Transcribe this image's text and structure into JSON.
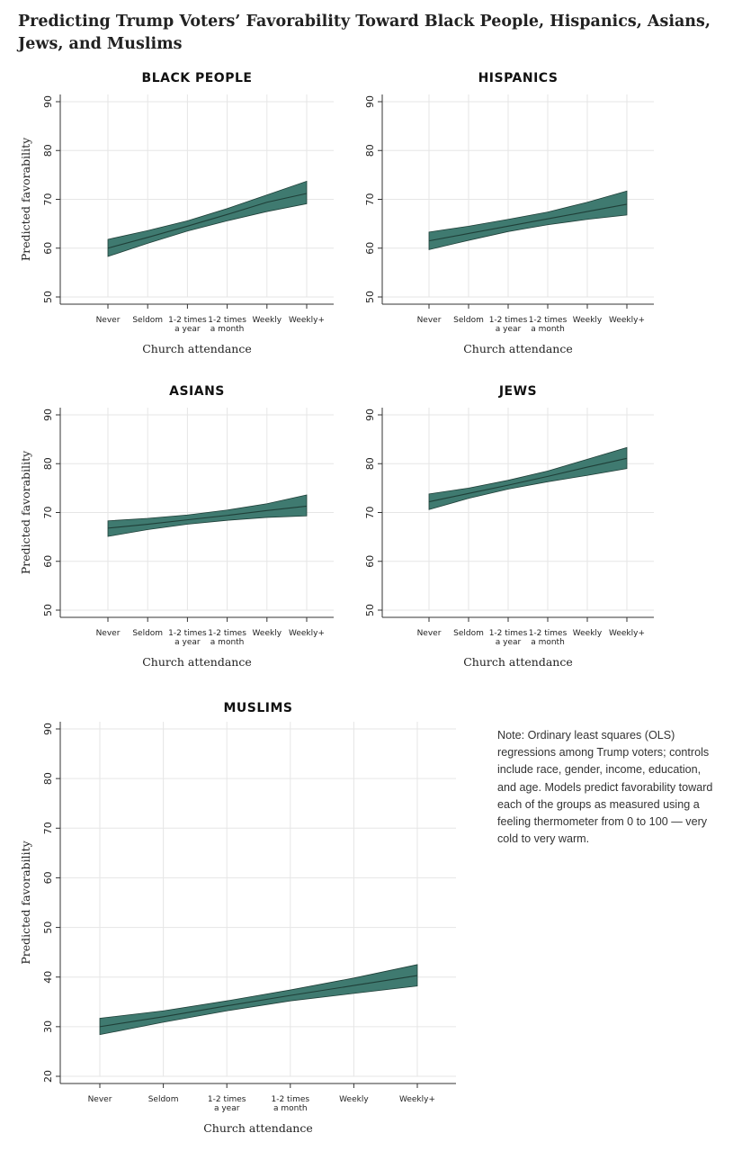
{
  "title": "Predicting Trump Voters’ Favorability Toward Black People, Hispanics, Asians, Jews, and Muslims",
  "note": "Note: Ordinary least squares (OLS) regressions among Trump voters; controls include race, gender, income, education, and age. Models predict favorability toward each of the groups as measured using a feeling thermometer from 0 to 100 — very cold to very warm.",
  "colors": {
    "band": "#3f7a70",
    "line": "#1f3f38",
    "grid": "#e6e6e6",
    "axis": "#333333"
  },
  "chart_data": [
    {
      "type": "area",
      "title": "BLACK PEOPLE",
      "xlabel": "Church attendance",
      "ylabel": "Predicted favorability",
      "categories": [
        [
          "Never"
        ],
        [
          "Seldom"
        ],
        [
          "1-2 times",
          "a year"
        ],
        [
          "1-2 times",
          "a month"
        ],
        [
          "Weekly"
        ],
        [
          "Weekly+"
        ]
      ],
      "ylim": [
        50,
        90
      ],
      "yticks": [
        50,
        60,
        70,
        80,
        90
      ],
      "grid": true,
      "series": [
        {
          "values": [
            60.0,
            62.2,
            64.5,
            66.9,
            69.4,
            71.2
          ],
          "lower": [
            58.3,
            61.0,
            63.5,
            65.6,
            67.5,
            69.1
          ],
          "upper": [
            61.8,
            63.6,
            65.6,
            68.1,
            70.9,
            73.7
          ]
        }
      ]
    },
    {
      "type": "area",
      "title": "HISPANICS",
      "xlabel": "Church attendance",
      "ylabel": "",
      "categories": [
        [
          "Never"
        ],
        [
          "Seldom"
        ],
        [
          "1-2 times",
          "a year"
        ],
        [
          "1-2 times",
          "a month"
        ],
        [
          "Weekly"
        ],
        [
          "Weekly+"
        ]
      ],
      "ylim": [
        50,
        90
      ],
      "yticks": [
        50,
        60,
        70,
        80,
        90
      ],
      "grid": true,
      "series": [
        {
          "values": [
            61.5,
            63.0,
            64.5,
            66.0,
            67.5,
            69.0
          ],
          "lower": [
            59.7,
            61.6,
            63.4,
            64.8,
            65.9,
            66.8
          ],
          "upper": [
            63.3,
            64.5,
            65.9,
            67.4,
            69.4,
            71.7
          ]
        }
      ]
    },
    {
      "type": "area",
      "title": "ASIANS",
      "xlabel": "Church attendance",
      "ylabel": "Predicted favorability",
      "categories": [
        [
          "Never"
        ],
        [
          "Seldom"
        ],
        [
          "1-2 times",
          "a year"
        ],
        [
          "1-2 times",
          "a month"
        ],
        [
          "Weekly"
        ],
        [
          "Weekly+"
        ]
      ],
      "ylim": [
        50,
        90
      ],
      "yticks": [
        50,
        60,
        70,
        80,
        90
      ],
      "grid": true,
      "series": [
        {
          "values": [
            66.8,
            67.6,
            68.5,
            69.4,
            70.4,
            71.3
          ],
          "lower": [
            65.1,
            66.5,
            67.6,
            68.4,
            69.0,
            69.3
          ],
          "upper": [
            68.3,
            68.8,
            69.5,
            70.5,
            71.8,
            73.6
          ]
        }
      ]
    },
    {
      "type": "area",
      "title": "JEWS",
      "xlabel": "Church attendance",
      "ylabel": "",
      "categories": [
        [
          "Never"
        ],
        [
          "Seldom"
        ],
        [
          "1-2 times",
          "a year"
        ],
        [
          "1-2 times",
          "a month"
        ],
        [
          "Weekly"
        ],
        [
          "Weekly+"
        ]
      ],
      "ylim": [
        50,
        90
      ],
      "yticks": [
        50,
        60,
        70,
        80,
        90
      ],
      "grid": true,
      "series": [
        {
          "values": [
            72.2,
            73.9,
            75.6,
            77.4,
            79.3,
            81.1
          ],
          "lower": [
            70.6,
            72.9,
            74.8,
            76.3,
            77.6,
            79.0
          ],
          "upper": [
            73.8,
            75.0,
            76.6,
            78.5,
            80.9,
            83.3
          ]
        }
      ]
    },
    {
      "type": "area",
      "title": "MUSLIMS",
      "xlabel": "Church attendance",
      "ylabel": "Predicted favorability",
      "categories": [
        [
          "Never"
        ],
        [
          "Seldom"
        ],
        [
          "1-2 times",
          "a year"
        ],
        [
          "1-2 times",
          "a month"
        ],
        [
          "Weekly"
        ],
        [
          "Weekly+"
        ]
      ],
      "ylim": [
        20,
        90
      ],
      "yticks": [
        20,
        30,
        40,
        50,
        60,
        70,
        80,
        90
      ],
      "grid": true,
      "series": [
        {
          "values": [
            30.0,
            32.0,
            34.2,
            36.3,
            38.3,
            40.3
          ],
          "lower": [
            28.4,
            30.9,
            33.2,
            35.2,
            36.7,
            38.2
          ],
          "upper": [
            31.7,
            33.2,
            35.2,
            37.4,
            39.8,
            42.5
          ]
        }
      ]
    }
  ]
}
